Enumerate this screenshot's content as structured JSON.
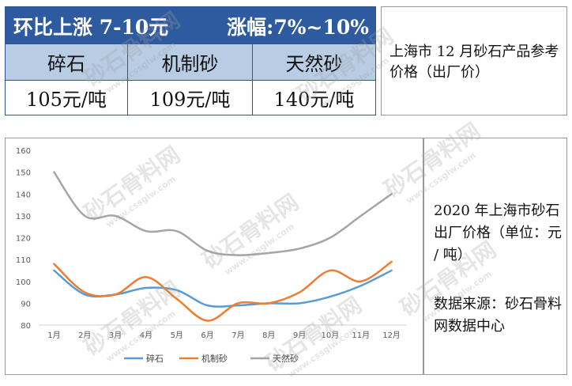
{
  "banner": {
    "left": "环比上涨 7-10元",
    "right": "涨幅:7%~10%"
  },
  "price_table": {
    "headers": [
      "碎石",
      "机制砂",
      "天然砂"
    ],
    "values": [
      "105元/吨",
      "109元/吨",
      "140元/吨"
    ]
  },
  "note_top": "上海市 12 月砂石产品参考价格（出厂价）",
  "side_note": {
    "title": "2020 年上海市砂石出厂价格（单位：元 / 吨）",
    "source": "数据来源：砂石骨料网数据中心"
  },
  "watermark": {
    "text": "砂石骨料网",
    "url": "www.cssglw.com"
  },
  "chart_data": {
    "type": "line",
    "categories": [
      "1月",
      "2月",
      "3月",
      "4月",
      "5月",
      "6月",
      "7月",
      "8月",
      "9月",
      "10月",
      "11月",
      "12月"
    ],
    "ylim": [
      80,
      160
    ],
    "yticks": [
      80,
      90,
      100,
      110,
      120,
      130,
      140,
      150,
      160
    ],
    "grid": false,
    "legend": "bottom",
    "series": [
      {
        "name": "碎石",
        "color": "#5b9bd5",
        "values": [
          105,
          94,
          94,
          97,
          96,
          89,
          89,
          90,
          90,
          93,
          98,
          105
        ]
      },
      {
        "name": "机制砂",
        "color": "#ed7d31",
        "values": [
          108,
          95,
          94,
          102,
          92,
          82,
          90,
          90,
          95,
          105,
          100,
          109
        ]
      },
      {
        "name": "天然砂",
        "color": "#a5a5a5",
        "values": [
          150,
          130,
          130,
          123,
          123,
          114,
          112,
          113,
          115,
          120,
          130,
          140
        ]
      }
    ]
  }
}
